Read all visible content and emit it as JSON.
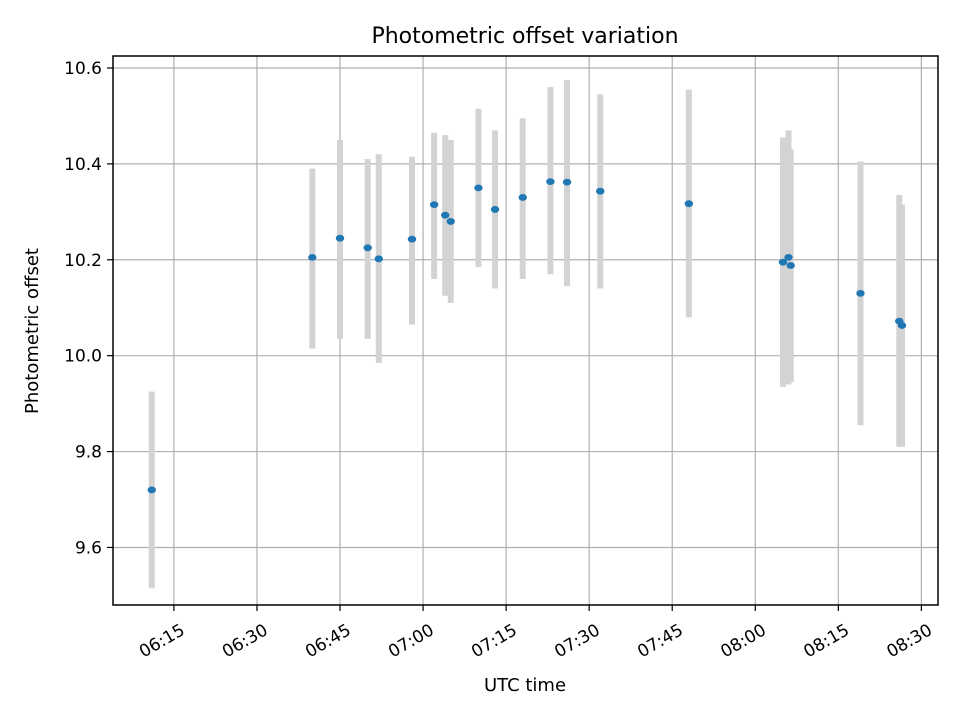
{
  "chart_data": {
    "type": "scatter",
    "title": "Photometric offset variation",
    "xlabel": "UTC time",
    "ylabel": "Photometric offset",
    "x_is_time": true,
    "xlim": [
      "06:04",
      "08:33"
    ],
    "ylim": [
      9.48,
      10.625
    ],
    "x_ticks": [
      "06:15",
      "06:30",
      "06:45",
      "07:00",
      "07:15",
      "07:30",
      "07:45",
      "08:00",
      "08:15",
      "08:30"
    ],
    "y_ticks": [
      9.6,
      9.8,
      10.0,
      10.2,
      10.4,
      10.6
    ],
    "y_tick_labels": [
      "9.6",
      "9.8",
      "10.0",
      "10.2",
      "10.4",
      "10.6"
    ],
    "grid": true,
    "colors": {
      "marker": "#1f77b4",
      "errorbar": "#d3d3d3"
    },
    "series": [
      {
        "points": [
          {
            "x": "06:11",
            "y": 9.72,
            "ylo": 9.515,
            "yhi": 9.925
          },
          {
            "x": "06:40",
            "y": 10.205,
            "ylo": 10.015,
            "yhi": 10.39
          },
          {
            "x": "06:45",
            "y": 10.245,
            "ylo": 10.035,
            "yhi": 10.45
          },
          {
            "x": "06:50",
            "y": 10.225,
            "ylo": 10.035,
            "yhi": 10.41
          },
          {
            "x": "06:52",
            "y": 10.202,
            "ylo": 9.985,
            "yhi": 10.42
          },
          {
            "x": "06:58",
            "y": 10.243,
            "ylo": 10.065,
            "yhi": 10.415
          },
          {
            "x": "07:02",
            "y": 10.315,
            "ylo": 10.16,
            "yhi": 10.465
          },
          {
            "x": "07:04",
            "y": 10.293,
            "ylo": 10.125,
            "yhi": 10.46
          },
          {
            "x": "07:05",
            "y": 10.28,
            "ylo": 10.11,
            "yhi": 10.45
          },
          {
            "x": "07:10",
            "y": 10.35,
            "ylo": 10.185,
            "yhi": 10.515
          },
          {
            "x": "07:13",
            "y": 10.305,
            "ylo": 10.14,
            "yhi": 10.47
          },
          {
            "x": "07:18",
            "y": 10.33,
            "ylo": 10.16,
            "yhi": 10.495
          },
          {
            "x": "07:23",
            "y": 10.363,
            "ylo": 10.17,
            "yhi": 10.56
          },
          {
            "x": "07:26",
            "y": 10.362,
            "ylo": 10.145,
            "yhi": 10.575
          },
          {
            "x": "07:32",
            "y": 10.343,
            "ylo": 10.14,
            "yhi": 10.545
          },
          {
            "x": "07:48",
            "y": 10.317,
            "ylo": 10.08,
            "yhi": 10.555
          },
          {
            "x": "08:05",
            "y": 10.195,
            "ylo": 9.935,
            "yhi": 10.455
          },
          {
            "x": "08:06",
            "y": 10.205,
            "ylo": 9.94,
            "yhi": 10.47
          },
          {
            "x": "08:06.4",
            "y": 10.188,
            "ylo": 9.945,
            "yhi": 10.43
          },
          {
            "x": "08:19",
            "y": 10.13,
            "ylo": 9.855,
            "yhi": 10.405
          },
          {
            "x": "08:26",
            "y": 10.072,
            "ylo": 9.81,
            "yhi": 10.335
          },
          {
            "x": "08:26.5",
            "y": 10.063,
            "ylo": 9.81,
            "yhi": 10.315
          }
        ]
      }
    ]
  }
}
